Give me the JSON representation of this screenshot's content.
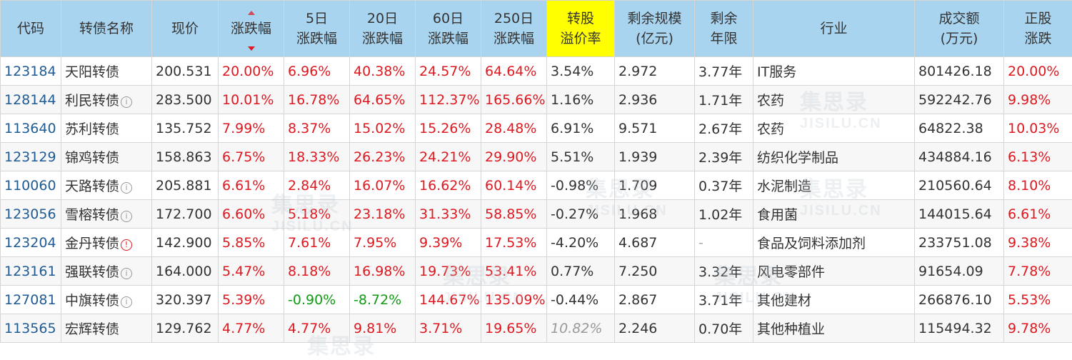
{
  "headers": {
    "code": "代码",
    "name": "转债名称",
    "price": "现价",
    "change": "涨跌幅",
    "d5": [
      "5日",
      "涨跌幅"
    ],
    "d20": [
      "20日",
      "涨跌幅"
    ],
    "d60": [
      "60日",
      "涨跌幅"
    ],
    "d250": [
      "250日",
      "涨跌幅"
    ],
    "premium": [
      "转股",
      "溢价率"
    ],
    "scale": [
      "剩余规模",
      "(亿元)"
    ],
    "years": [
      "剩余",
      "年限"
    ],
    "industry": "行业",
    "volume": [
      "成交额",
      "(万元)"
    ],
    "stock_change": [
      "正股",
      "涨跌"
    ]
  },
  "watermark": {
    "cn": "集思录",
    "en": "JISILU.CN"
  },
  "rows": [
    {
      "code": "123184",
      "name": "天阳转债",
      "icon": "none",
      "price": "200.531",
      "change": "20.00%",
      "d5": "6.96%",
      "d20": "40.38%",
      "d60": "24.57%",
      "d250": "64.64%",
      "premium": "3.54%",
      "scale": "2.972",
      "years": "3.77年",
      "industry": "IT服务",
      "volume": "801426.18",
      "stock_change": "20.00%"
    },
    {
      "code": "128144",
      "name": "利民转债",
      "icon": "info-circle-icon",
      "price": "283.500",
      "change": "10.01%",
      "d5": "16.78%",
      "d20": "64.65%",
      "d60": "112.37%",
      "d250": "165.66%",
      "premium": "1.16%",
      "scale": "2.936",
      "years": "1.71年",
      "industry": "农药",
      "volume": "592242.76",
      "stock_change": "9.98%"
    },
    {
      "code": "113640",
      "name": "苏利转债",
      "icon": "none",
      "price": "135.752",
      "change": "7.99%",
      "d5": "8.37%",
      "d20": "15.02%",
      "d60": "15.26%",
      "d250": "28.48%",
      "premium": "6.91%",
      "scale": "9.571",
      "years": "2.67年",
      "industry": "农药",
      "volume": "64822.38",
      "stock_change": "10.03%"
    },
    {
      "code": "123129",
      "name": "锦鸡转债",
      "icon": "none",
      "price": "158.863",
      "change": "6.75%",
      "d5": "18.33%",
      "d20": "26.23%",
      "d60": "24.21%",
      "d250": "29.90%",
      "premium": "5.51%",
      "scale": "1.939",
      "years": "2.39年",
      "industry": "纺织化学制品",
      "volume": "434884.16",
      "stock_change": "6.13%"
    },
    {
      "code": "110060",
      "name": "天路转债",
      "icon": "info-circle-icon",
      "price": "205.881",
      "change": "6.61%",
      "d5": "2.84%",
      "d20": "16.07%",
      "d60": "16.62%",
      "d250": "60.14%",
      "premium": "-0.98%",
      "scale": "1.709",
      "years": "0.37年",
      "industry": "水泥制造",
      "volume": "210560.64",
      "stock_change": "8.10%"
    },
    {
      "code": "123056",
      "name": "雪榕转债",
      "icon": "info-circle-icon",
      "price": "172.700",
      "change": "6.60%",
      "d5": "5.18%",
      "d20": "23.18%",
      "d60": "31.33%",
      "d250": "58.85%",
      "premium": "-0.27%",
      "scale": "1.968",
      "years": "1.02年",
      "industry": "食用菌",
      "volume": "144015.64",
      "stock_change": "6.61%"
    },
    {
      "code": "123204",
      "name": "金丹转债",
      "icon": "alert-circle-icon",
      "price": "142.900",
      "change": "5.85%",
      "d5": "7.61%",
      "d20": "7.95%",
      "d60": "9.39%",
      "d250": "17.53%",
      "premium": "-4.20%",
      "scale": "4.687",
      "years": "-",
      "industry": "食品及饲料添加剂",
      "volume": "233751.08",
      "stock_change": "9.38%"
    },
    {
      "code": "123161",
      "name": "强联转债",
      "icon": "info-circle-icon",
      "price": "164.000",
      "change": "5.47%",
      "d5": "8.18%",
      "d20": "16.98%",
      "d60": "19.73%",
      "d250": "53.41%",
      "premium": "0.77%",
      "scale": "7.250",
      "years": "3.32年",
      "industry": "风电零部件",
      "volume": "91654.09",
      "stock_change": "7.78%"
    },
    {
      "code": "127081",
      "name": "中旗转债",
      "icon": "info-circle-icon",
      "price": "320.397",
      "change": "5.39%",
      "d5": "-0.90%",
      "d20": "-8.72%",
      "d60": "144.67%",
      "d250": "135.09%",
      "premium": "-0.44%",
      "scale": "2.867",
      "years": "3.71年",
      "industry": "其他建材",
      "volume": "266876.10",
      "stock_change": "5.53%"
    },
    {
      "code": "113565",
      "name": "宏辉转债",
      "icon": "none",
      "price": "129.762",
      "change": "4.77%",
      "d5": "4.77%",
      "d20": "9.81%",
      "d60": "3.71%",
      "d250": "19.65%",
      "premium": "10.82%",
      "premium_style": "muted",
      "scale": "2.246",
      "years": "0.70年",
      "industry": "其他种植业",
      "volume": "115494.32",
      "stock_change": "9.78%"
    }
  ]
}
